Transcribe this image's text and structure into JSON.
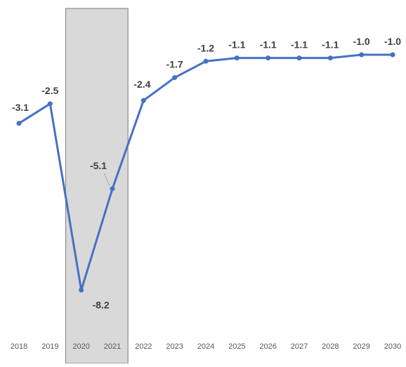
{
  "chart_data": {
    "type": "line",
    "title": "",
    "xlabel": "",
    "ylabel": "",
    "categories": [
      "2018",
      "2019",
      "2020",
      "2021",
      "2022",
      "2023",
      "2024",
      "2025",
      "2026",
      "2027",
      "2028",
      "2029",
      "2030"
    ],
    "series": [
      {
        "values": [
          -3.1,
          -2.5,
          -8.2,
          -5.1,
          -2.4,
          -1.7,
          -1.2,
          -1.1,
          -1.1,
          -1.1,
          -1.1,
          -1.0,
          -1.0
        ],
        "labels": [
          "-3.1",
          "-2.5",
          "-8.2",
          "-5.1",
          "-2.4",
          "-1.7",
          "-1.2",
          "-1.1",
          "-1.1",
          "-1.1",
          "-1.1",
          "-1.0",
          "-1.0"
        ],
        "color": "#4472c4"
      }
    ],
    "ylim": [
      -8.6,
      -0.7
    ],
    "grid": false,
    "legend": "none",
    "highlight": {
      "categories": [
        "2020",
        "2021"
      ],
      "color": "#d9d9d9",
      "border_color": "#8c8c8c"
    },
    "colors": {
      "line": "#4472c4",
      "data_label": "#404040",
      "tick_label": "#595959"
    }
  }
}
